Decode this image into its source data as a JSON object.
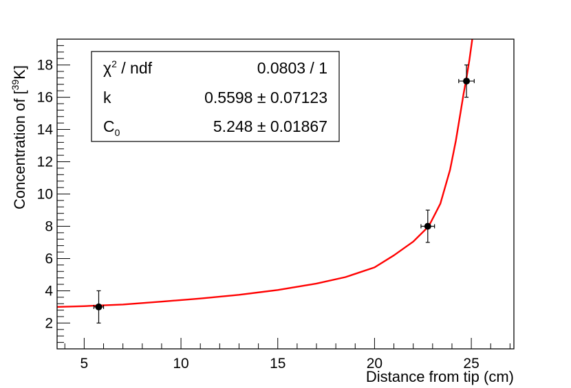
{
  "chart_data": {
    "type": "scatter",
    "xlabel": "Distance from tip (cm)",
    "ylabel": {
      "prefix": "Concentration of [",
      "superscript": "39",
      "suffix": "K]"
    },
    "xlim": [
      3.6,
      27.2
    ],
    "ylim": [
      0.4,
      19.6
    ],
    "x_ticks": [
      5,
      10,
      15,
      20,
      25
    ],
    "y_ticks": [
      2,
      4,
      6,
      8,
      10,
      12,
      14,
      16,
      18
    ],
    "x_minor_step": 1,
    "y_minor_step": 0.4,
    "grid": false,
    "points": [
      {
        "x": 5.75,
        "y": 3.0,
        "xerr": 0.25,
        "yerr": 1.0
      },
      {
        "x": 22.75,
        "y": 8.0,
        "xerr": 0.35,
        "yerr": 1.0
      },
      {
        "x": 24.75,
        "y": 17.0,
        "xerr": 0.4,
        "yerr": 1.0
      }
    ],
    "fit_curve": {
      "color": "#ff0000",
      "points": [
        [
          3.6,
          3.0
        ],
        [
          5,
          3.05
        ],
        [
          7,
          3.15
        ],
        [
          9,
          3.33
        ],
        [
          11,
          3.52
        ],
        [
          13,
          3.75
        ],
        [
          15,
          4.05
        ],
        [
          17,
          4.45
        ],
        [
          18.5,
          4.85
        ],
        [
          20,
          5.45
        ],
        [
          21,
          6.2
        ],
        [
          22,
          7.05
        ],
        [
          22.8,
          8.0
        ],
        [
          23.4,
          9.4
        ],
        [
          23.9,
          11.5
        ],
        [
          24.2,
          13.3
        ],
        [
          24.45,
          15.1
        ],
        [
          24.6,
          16.2
        ],
        [
          24.75,
          17.2
        ],
        [
          24.9,
          18.3
        ],
        [
          25.05,
          19.6
        ]
      ]
    },
    "stats_box": {
      "rows": [
        {
          "name": "χ",
          "name_sup": "2",
          "name_rest": " / ndf",
          "value": "0.0803 / 1"
        },
        {
          "name": "k",
          "name_sup": "",
          "name_rest": "",
          "value": "0.5598 ± 0.07123"
        },
        {
          "name": "C",
          "name_sub": "0",
          "name_rest": "",
          "value": "5.248 ± 0.01867"
        }
      ]
    }
  }
}
